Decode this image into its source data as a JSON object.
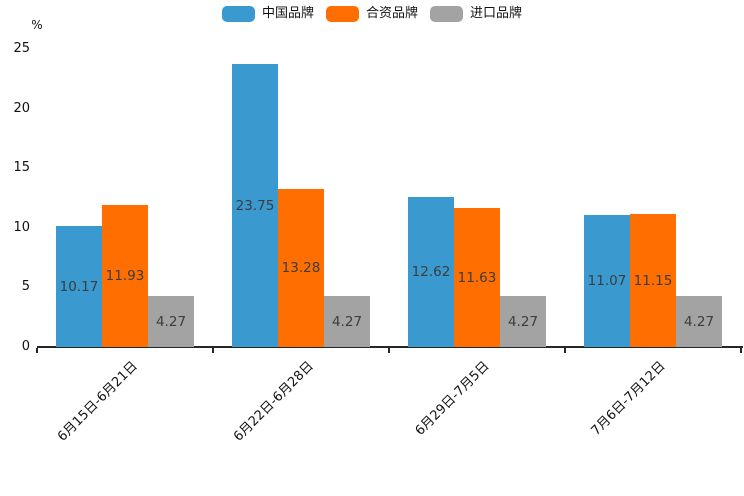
{
  "chart_data": {
    "type": "bar",
    "title": "",
    "unit_label": "%",
    "categories": [
      "6月15日-6月21日",
      "6月22日-6月28日",
      "6月29日-7月5日",
      "7月6日-7月12日"
    ],
    "series": [
      {
        "id": "china-brands",
        "name": "中国品牌",
        "color": "#3A99CE",
        "values": [
          10.17,
          23.75,
          12.62,
          11.07
        ]
      },
      {
        "id": "joint-venture-brands",
        "name": "合资品牌",
        "color": "#FF6E00",
        "values": [
          11.93,
          13.28,
          11.63,
          11.15
        ]
      },
      {
        "id": "imported-brands",
        "name": "进口品牌",
        "color": "#A3A3A3",
        "values": [
          4.27,
          4.27,
          4.27,
          4.27
        ]
      }
    ],
    "value_label_decimals": 2,
    "y_ticks": [
      0,
      5,
      10,
      15,
      20,
      25
    ],
    "ylim": [
      0,
      25.3
    ],
    "grid": false,
    "legend_position": "top",
    "value_labels": true,
    "colors": {
      "axis": "#262626",
      "tick_text": "#111111",
      "value_text": "#3d3d3d",
      "background": "#ffffff"
    }
  }
}
